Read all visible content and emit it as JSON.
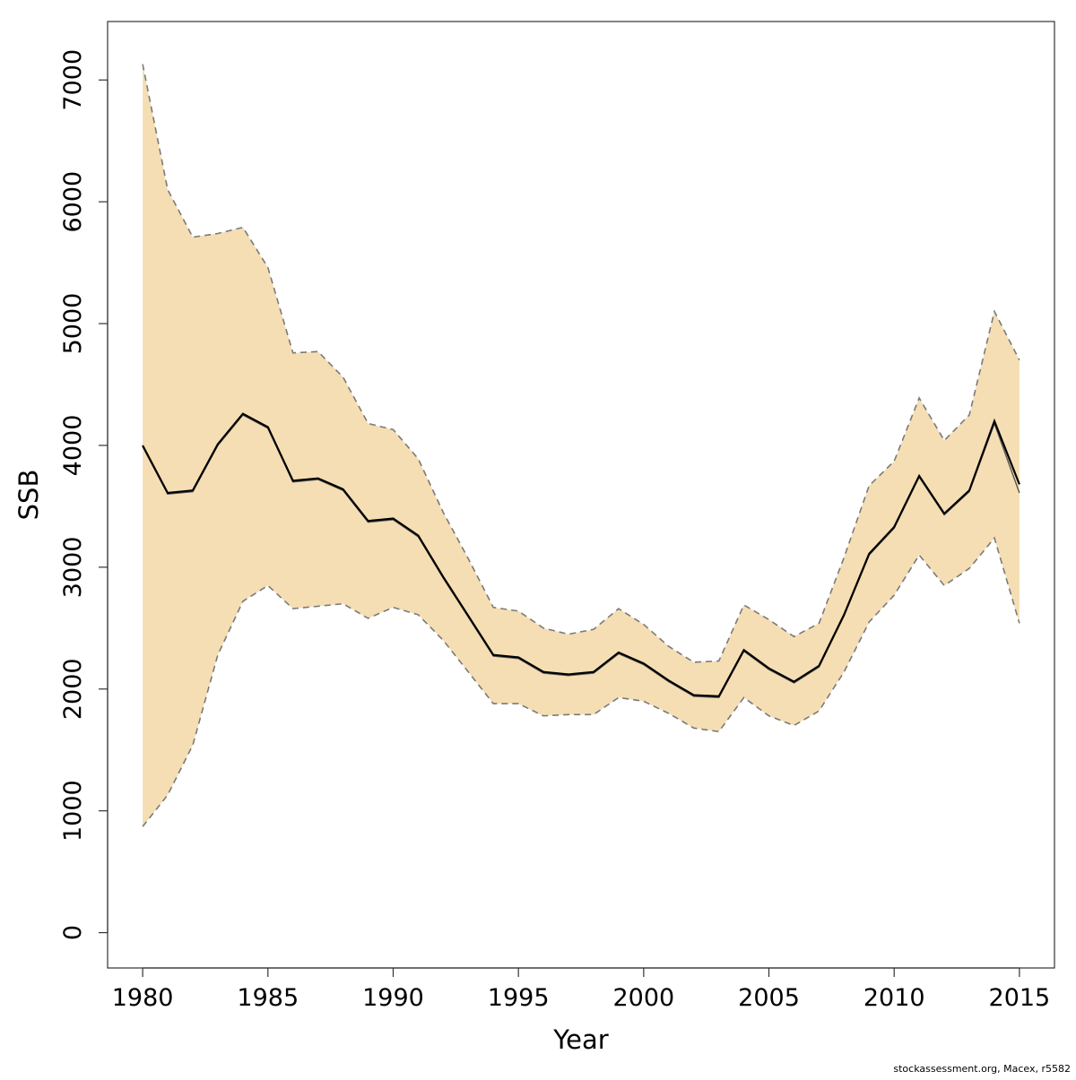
{
  "chart_data": {
    "type": "line",
    "title": "",
    "xlabel": "Year",
    "ylabel": "SSB",
    "xlim": [
      1978.6,
      2016.4
    ],
    "ylim": [
      -290,
      7480
    ],
    "x_ticks": [
      1980,
      1985,
      1990,
      1995,
      2000,
      2005,
      2010,
      2015
    ],
    "x_tick_labels": [
      "1980",
      "1985",
      "1990",
      "1995",
      "2000",
      "2005",
      "2010",
      "2015"
    ],
    "y_ticks": [
      0,
      1000,
      2000,
      3000,
      4000,
      5000,
      6000,
      7000
    ],
    "y_tick_labels": [
      "0",
      "1000",
      "2000",
      "3000",
      "4000",
      "5000",
      "6000",
      "7000"
    ],
    "grid": false,
    "x": [
      1980,
      1981,
      1982,
      1983,
      1984,
      1985,
      1986,
      1987,
      1988,
      1989,
      1990,
      1991,
      1992,
      1993,
      1994,
      1995,
      1996,
      1997,
      1998,
      1999,
      2000,
      2001,
      2002,
      2003,
      2004,
      2005,
      2006,
      2007,
      2008,
      2009,
      2010,
      2011,
      2012,
      2013,
      2014,
      2015
    ],
    "series": [
      {
        "role": "estimate",
        "values": [
          4000,
          3610,
          3630,
          4010,
          4260,
          4150,
          3710,
          3730,
          3640,
          3380,
          3400,
          3260,
          2920,
          2600,
          2280,
          2260,
          2140,
          2120,
          2140,
          2300,
          2210,
          2070,
          1950,
          1940,
          2320,
          2170,
          2060,
          2190,
          2610,
          3110,
          3330,
          3750,
          3440,
          3630,
          4200,
          3680
        ]
      },
      {
        "role": "estimate-alt",
        "values": [
          3990,
          3600,
          3620,
          4000,
          4250,
          4140,
          3700,
          3720,
          3630,
          3370,
          3390,
          3250,
          2910,
          2590,
          2270,
          2250,
          2130,
          2110,
          2130,
          2290,
          2200,
          2060,
          1940,
          1930,
          2310,
          2160,
          2050,
          2180,
          2600,
          3100,
          3320,
          3740,
          3430,
          3620,
          4180,
          3610
        ]
      },
      {
        "role": "lower-bound",
        "values": [
          870,
          1130,
          1540,
          2280,
          2720,
          2850,
          2660,
          2680,
          2700,
          2580,
          2670,
          2610,
          2400,
          2140,
          1880,
          1880,
          1780,
          1790,
          1790,
          1930,
          1900,
          1800,
          1680,
          1650,
          1930,
          1780,
          1700,
          1820,
          2140,
          2550,
          2770,
          3100,
          2850,
          2990,
          3240,
          2540
        ]
      },
      {
        "role": "upper-bound",
        "values": [
          7130,
          6100,
          5710,
          5740,
          5790,
          5460,
          4760,
          4770,
          4560,
          4180,
          4130,
          3890,
          3450,
          3070,
          2670,
          2640,
          2500,
          2450,
          2490,
          2660,
          2530,
          2350,
          2220,
          2230,
          2690,
          2570,
          2430,
          2540,
          3080,
          3670,
          3870,
          4390,
          4040,
          4250,
          5100,
          4700
        ]
      }
    ],
    "colors": {
      "band": "#f5deb3",
      "estimate": "#000000",
      "bounds": "#7a7a7a"
    }
  },
  "footer": {
    "note": "stockassessment.org, Macex, r5582"
  }
}
